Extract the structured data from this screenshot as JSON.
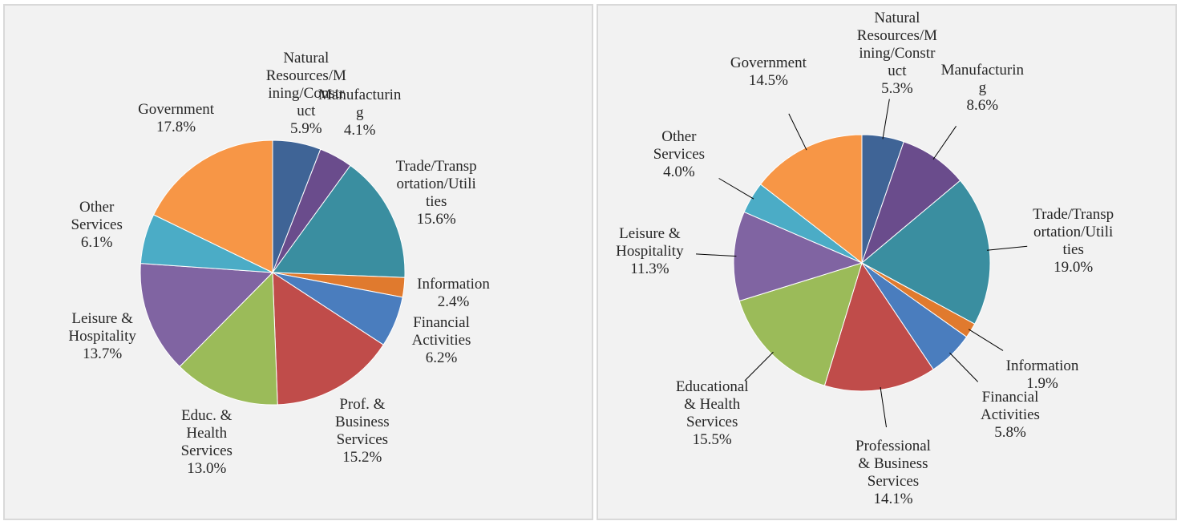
{
  "chart_data": [
    {
      "type": "pie",
      "categories": [
        "Natural Resources/Mining/Construct",
        "Manufacturing",
        "Trade/Transportation/Utilities",
        "Information",
        "Financial Activities",
        "Prof. & Business Services",
        "Educ. & Health Services",
        "Leisure & Hospitality",
        "Other Services",
        "Government"
      ],
      "values": [
        5.9,
        4.1,
        15.6,
        2.4,
        6.2,
        15.2,
        13.0,
        13.7,
        6.1,
        17.8
      ],
      "value_labels": [
        "5.9%",
        "4.1%",
        "15.6%",
        "2.4%",
        "6.2%",
        "15.2%",
        "13.0%",
        "13.7%",
        "6.1%",
        "17.8%"
      ],
      "colors": [
        "#3f6496",
        "#6a4c8c",
        "#3a8ea0",
        "#e07a2e",
        "#4a7dbe",
        "#c04c4a",
        "#9bbb59",
        "#8064a2",
        "#4bacc6",
        "#f79646"
      ],
      "leader_lines": false
    },
    {
      "type": "pie",
      "categories": [
        "Natural Resources/Mining/Construct",
        "Manufacturing",
        "Trade/Transportation/Utilities",
        "Information",
        "Financial Activities",
        "Professional & Business Services",
        "Educational & Health Services",
        "Leisure & Hospitality",
        "Other Services",
        "Government"
      ],
      "values": [
        5.3,
        8.6,
        19.0,
        1.9,
        5.8,
        14.1,
        15.5,
        11.3,
        4.0,
        14.5
      ],
      "value_labels": [
        "5.3%",
        "8.6%",
        "19.0%",
        "1.9%",
        "5.8%",
        "14.1%",
        "15.5%",
        "11.3%",
        "4.0%",
        "14.5%"
      ],
      "colors": [
        "#3f6496",
        "#6a4c8c",
        "#3a8ea0",
        "#e07a2e",
        "#4a7dbe",
        "#c04c4a",
        "#9bbb59",
        "#8064a2",
        "#4bacc6",
        "#f79646"
      ],
      "leader_lines": true
    }
  ]
}
